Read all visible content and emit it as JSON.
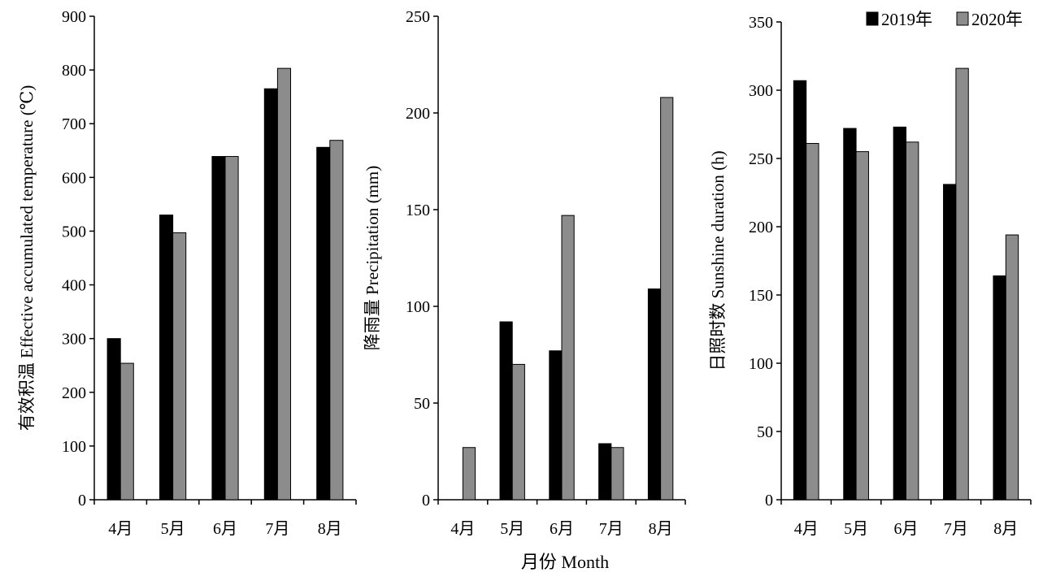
{
  "colors": {
    "y2019": "#000000",
    "y2020": "#8c8c8c"
  },
  "legend": {
    "items": [
      "2019年",
      "2020年"
    ]
  },
  "shared_xlabel": "月份 Month",
  "chart_data": [
    {
      "type": "bar",
      "categories": [
        "4月",
        "5月",
        "6月",
        "7月",
        "8月"
      ],
      "ylabel": "有效积温 Effective accumulated temperature (℃)",
      "ylim": [
        0,
        900
      ],
      "yticks": [
        0,
        100,
        200,
        300,
        400,
        500,
        600,
        700,
        800,
        900
      ],
      "series": [
        {
          "name": "2019年",
          "values": [
            300,
            530,
            639,
            765,
            656
          ]
        },
        {
          "name": "2020年",
          "values": [
            254,
            497,
            639,
            803,
            669
          ]
        }
      ]
    },
    {
      "type": "bar",
      "categories": [
        "4月",
        "5月",
        "6月",
        "7月",
        "8月"
      ],
      "ylabel": "降雨量 Precipitation (mm)",
      "ylim": [
        0,
        250
      ],
      "yticks": [
        0,
        50,
        100,
        150,
        200,
        250
      ],
      "series": [
        {
          "name": "2019年",
          "values": [
            0,
            92,
            77,
            29,
            109
          ]
        },
        {
          "name": "2020年",
          "values": [
            27,
            70,
            147,
            27,
            208
          ]
        }
      ]
    },
    {
      "type": "bar",
      "categories": [
        "4月",
        "5月",
        "6月",
        "7月",
        "8月"
      ],
      "ylabel": "日照时数 Sunshine duration (h)",
      "ylim": [
        0,
        350
      ],
      "yticks": [
        0,
        50,
        100,
        150,
        200,
        250,
        300,
        350
      ],
      "series": [
        {
          "name": "2019年",
          "values": [
            307,
            272,
            273,
            231,
            164
          ]
        },
        {
          "name": "2020年",
          "values": [
            261,
            255,
            262,
            316,
            194
          ]
        }
      ]
    }
  ]
}
